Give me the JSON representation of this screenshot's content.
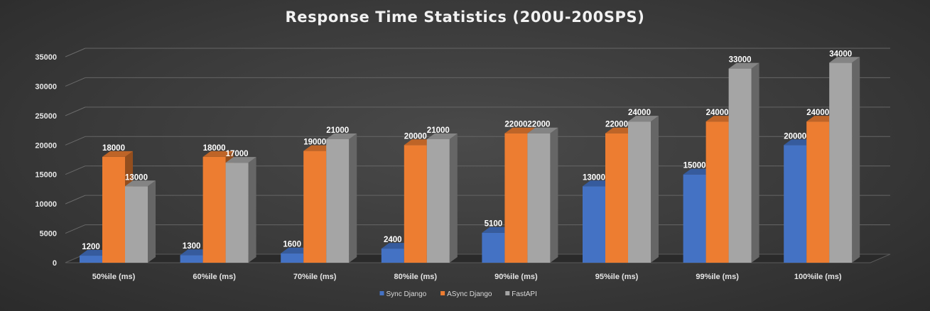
{
  "chart_data": {
    "type": "bar",
    "title": "Response Time Statistics (200U-200SPS)",
    "xlabel": "",
    "ylabel": "",
    "categories": [
      "50%ile (ms)",
      "60%ile (ms)",
      "70%ile (ms)",
      "80%ile (ms)",
      "90%ile (ms)",
      "95%ile (ms)",
      "99%ile (ms)",
      "100%ile (ms)"
    ],
    "series": [
      {
        "name": "Sync Django",
        "color": "#4472c4",
        "values": [
          1200,
          1300,
          1600,
          2400,
          5100,
          13000,
          15000,
          20000
        ]
      },
      {
        "name": "ASync Django",
        "color": "#ed7d31",
        "values": [
          18000,
          18000,
          19000,
          20000,
          22000,
          22000,
          24000,
          24000
        ]
      },
      {
        "name": "FastAPI",
        "color": "#a5a5a5",
        "values": [
          13000,
          17000,
          21000,
          21000,
          22000,
          24000,
          33000,
          34000
        ]
      }
    ],
    "ylim": [
      0,
      35000
    ],
    "yticks": [
      0,
      5000,
      10000,
      15000,
      20000,
      25000,
      30000,
      35000
    ],
    "grid": true,
    "legend": "bottom",
    "style": "3d-clustered-column"
  }
}
